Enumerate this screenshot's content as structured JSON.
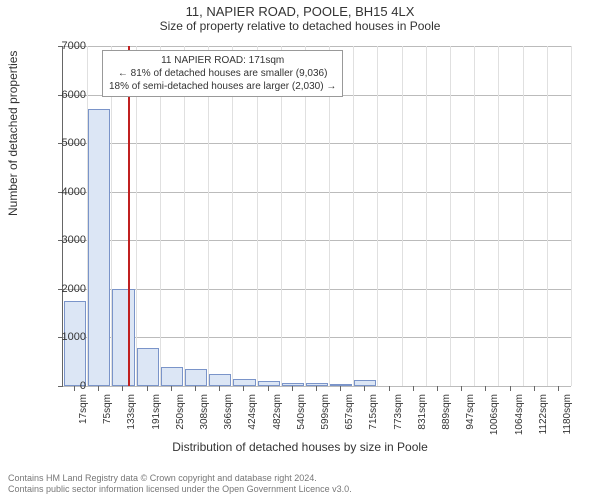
{
  "header": {
    "title": "11, NAPIER ROAD, POOLE, BH15 4LX",
    "subtitle": "Size of property relative to detached houses in Poole"
  },
  "chart": {
    "type": "histogram",
    "ylabel": "Number of detached properties",
    "xlabel": "Distribution of detached houses by size in Poole",
    "ylim": [
      0,
      7000
    ],
    "ytick_step": 1000,
    "yticks": [
      0,
      1000,
      2000,
      3000,
      4000,
      5000,
      6000,
      7000
    ],
    "xticks": [
      "17sqm",
      "75sqm",
      "133sqm",
      "191sqm",
      "250sqm",
      "308sqm",
      "366sqm",
      "424sqm",
      "482sqm",
      "540sqm",
      "599sqm",
      "657sqm",
      "715sqm",
      "773sqm",
      "831sqm",
      "889sqm",
      "947sqm",
      "1006sqm",
      "1064sqm",
      "1122sqm",
      "1180sqm"
    ],
    "bar_values": [
      1750,
      5700,
      2000,
      780,
      400,
      350,
      250,
      150,
      100,
      70,
      60,
      40,
      120,
      0,
      0,
      0,
      0,
      0,
      0,
      0,
      0
    ],
    "bar_fill_color": "#dce6f5",
    "bar_stroke_color": "#7a94c9",
    "background_color": "#ffffff",
    "grid_color": "#bbbbbb",
    "vline_color": "#e0e0e0",
    "axis_color": "#666666",
    "marker_index": 2.7,
    "marker_color": "#c02020",
    "label_fontsize": 12,
    "tick_fontsize": 11
  },
  "annotation": {
    "line1": "11 NAPIER ROAD: 171sqm",
    "line2": "← 81% of detached houses are smaller (9,036)",
    "line3": "18% of semi-detached houses are larger (2,030) →"
  },
  "footer": {
    "line1": "Contains HM Land Registry data © Crown copyright and database right 2024.",
    "line2": "Contains public sector information licensed under the Open Government Licence v3.0."
  }
}
